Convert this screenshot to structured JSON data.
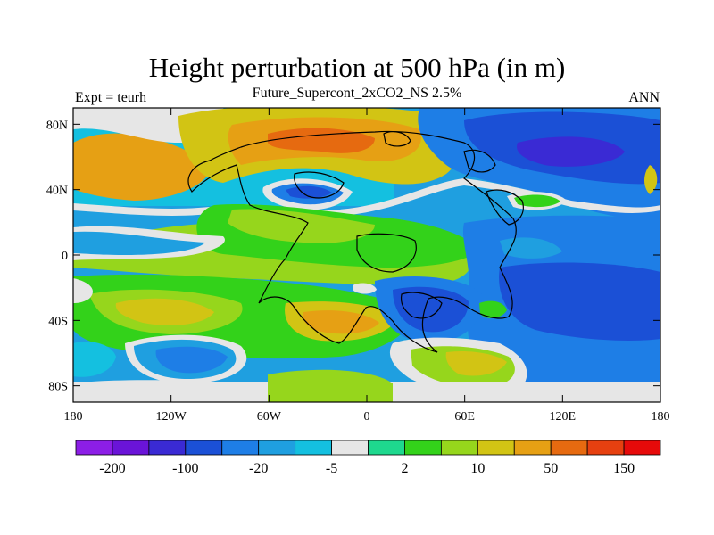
{
  "title": "Height perturbation at 500 hPa (in m)",
  "subtitle": "Future_Supercont_2xCO2_NS 2.5%",
  "left_label": "Expt = teurh",
  "right_label": "ANN",
  "map": {
    "lon_range": [
      -180,
      180
    ],
    "lat_range": [
      -90,
      90
    ],
    "x_tick_labels": [
      "180",
      "120W",
      "60W",
      "0",
      "60E",
      "120E",
      "180"
    ],
    "x_tick_values": [
      -180,
      -120,
      -60,
      0,
      60,
      120,
      180
    ],
    "y_tick_labels": [
      "80N",
      "40N",
      "0",
      "40S",
      "80S"
    ],
    "y_tick_values": [
      80,
      40,
      0,
      -40,
      -80
    ]
  },
  "colorbar": {
    "colors": [
      "#8c1ee6",
      "#6a14d8",
      "#3a2ad4",
      "#1b50d6",
      "#1e7ee6",
      "#1f9fe0",
      "#14c0e0",
      "#e6e6e6",
      "#1ed88e",
      "#33d21a",
      "#96d61c",
      "#d2c414",
      "#e6a014",
      "#e66a10",
      "#e64010",
      "#e60a0a"
    ],
    "labels": [
      "-200",
      "-100",
      "-20",
      "-5",
      "2",
      "10",
      "50",
      "150"
    ]
  }
}
